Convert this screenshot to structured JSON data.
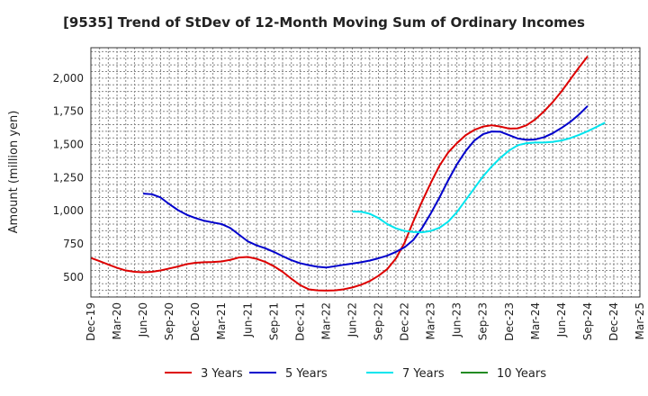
{
  "chart_data": {
    "type": "line",
    "title": "[9535]  Trend of StDev of 12-Month Moving Sum of Ordinary Incomes",
    "xlabel": "",
    "ylabel": "Amount (million yen)",
    "ylim": [
      350,
      2230
    ],
    "yticks": [
      500,
      750,
      1000,
      1250,
      1500,
      1750,
      2000
    ],
    "ytick_labels": [
      "500",
      "750",
      "1,000",
      "1,250",
      "1,500",
      "1,750",
      "2,000"
    ],
    "xticks": [
      "Dec-19",
      "Mar-20",
      "Jun-20",
      "Sep-20",
      "Dec-20",
      "Mar-21",
      "Jun-21",
      "Sep-21",
      "Dec-21",
      "Mar-22",
      "Jun-22",
      "Sep-22",
      "Dec-22",
      "Mar-23",
      "Jun-23",
      "Sep-23",
      "Dec-23",
      "Mar-24",
      "Jun-24",
      "Sep-24",
      "Dec-24",
      "Mar-25"
    ],
    "grid": true,
    "legend_position": "bottom",
    "series": [
      {
        "name": "3 Years",
        "color": "#dd0000",
        "points": [
          [
            0,
            645
          ],
          [
            1,
            620
          ],
          [
            2,
            595
          ],
          [
            3,
            570
          ],
          [
            4,
            550
          ],
          [
            5,
            540
          ],
          [
            6,
            537
          ],
          [
            7,
            540
          ],
          [
            8,
            550
          ],
          [
            9,
            565
          ],
          [
            10,
            580
          ],
          [
            11,
            598
          ],
          [
            12,
            608
          ],
          [
            13,
            612
          ],
          [
            14,
            614
          ],
          [
            15,
            618
          ],
          [
            16,
            630
          ],
          [
            17,
            648
          ],
          [
            18,
            652
          ],
          [
            19,
            638
          ],
          [
            20,
            615
          ],
          [
            21,
            582
          ],
          [
            22,
            540
          ],
          [
            23,
            488
          ],
          [
            24,
            440
          ],
          [
            25,
            408
          ],
          [
            26,
            400
          ],
          [
            27,
            398
          ],
          [
            28,
            400
          ],
          [
            29,
            408
          ],
          [
            30,
            422
          ],
          [
            31,
            442
          ],
          [
            32,
            470
          ],
          [
            33,
            510
          ],
          [
            34,
            560
          ],
          [
            35,
            640
          ],
          [
            36,
            760
          ],
          [
            37,
            920
          ],
          [
            38,
            1070
          ],
          [
            39,
            1210
          ],
          [
            40,
            1340
          ],
          [
            41,
            1440
          ],
          [
            42,
            1510
          ],
          [
            43,
            1570
          ],
          [
            44,
            1610
          ],
          [
            45,
            1635
          ],
          [
            46,
            1645
          ],
          [
            47,
            1635
          ],
          [
            48,
            1620
          ],
          [
            49,
            1622
          ],
          [
            50,
            1645
          ],
          [
            51,
            1690
          ],
          [
            52,
            1750
          ],
          [
            53,
            1820
          ],
          [
            54,
            1900
          ],
          [
            55,
            1990
          ],
          [
            56,
            2080
          ],
          [
            57,
            2165
          ]
        ]
      },
      {
        "name": "5 Years",
        "color": "#0000cc",
        "points": [
          [
            6,
            1130
          ],
          [
            7,
            1125
          ],
          [
            8,
            1100
          ],
          [
            9,
            1050
          ],
          [
            10,
            1005
          ],
          [
            11,
            970
          ],
          [
            12,
            945
          ],
          [
            13,
            925
          ],
          [
            14,
            912
          ],
          [
            15,
            900
          ],
          [
            16,
            870
          ],
          [
            17,
            820
          ],
          [
            18,
            770
          ],
          [
            19,
            740
          ],
          [
            20,
            718
          ],
          [
            21,
            690
          ],
          [
            22,
            658
          ],
          [
            23,
            628
          ],
          [
            24,
            605
          ],
          [
            25,
            590
          ],
          [
            26,
            578
          ],
          [
            27,
            572
          ],
          [
            28,
            582
          ],
          [
            29,
            593
          ],
          [
            30,
            602
          ],
          [
            31,
            612
          ],
          [
            32,
            625
          ],
          [
            33,
            642
          ],
          [
            34,
            662
          ],
          [
            35,
            690
          ],
          [
            36,
            725
          ],
          [
            37,
            780
          ],
          [
            38,
            870
          ],
          [
            39,
            980
          ],
          [
            40,
            1100
          ],
          [
            41,
            1230
          ],
          [
            42,
            1350
          ],
          [
            43,
            1450
          ],
          [
            44,
            1530
          ],
          [
            45,
            1578
          ],
          [
            46,
            1598
          ],
          [
            47,
            1596
          ],
          [
            48,
            1570
          ],
          [
            49,
            1545
          ],
          [
            50,
            1535
          ],
          [
            51,
            1538
          ],
          [
            52,
            1555
          ],
          [
            53,
            1585
          ],
          [
            54,
            1625
          ],
          [
            55,
            1670
          ],
          [
            56,
            1725
          ],
          [
            57,
            1790
          ]
        ]
      },
      {
        "name": "7 Years",
        "color": "#00e5ee",
        "points": [
          [
            30,
            995
          ],
          [
            31,
            993
          ],
          [
            32,
            978
          ],
          [
            33,
            945
          ],
          [
            34,
            900
          ],
          [
            35,
            868
          ],
          [
            36,
            848
          ],
          [
            37,
            840
          ],
          [
            38,
            838
          ],
          [
            39,
            848
          ],
          [
            40,
            872
          ],
          [
            41,
            918
          ],
          [
            42,
            990
          ],
          [
            43,
            1080
          ],
          [
            44,
            1170
          ],
          [
            45,
            1260
          ],
          [
            46,
            1335
          ],
          [
            47,
            1400
          ],
          [
            48,
            1455
          ],
          [
            49,
            1495
          ],
          [
            50,
            1510
          ],
          [
            51,
            1515
          ],
          [
            52,
            1515
          ],
          [
            53,
            1520
          ],
          [
            54,
            1530
          ],
          [
            55,
            1548
          ],
          [
            56,
            1572
          ],
          [
            57,
            1600
          ],
          [
            58,
            1632
          ],
          [
            59,
            1665
          ]
        ]
      },
      {
        "name": "10 Years",
        "color": "#228b22",
        "points": []
      }
    ]
  }
}
